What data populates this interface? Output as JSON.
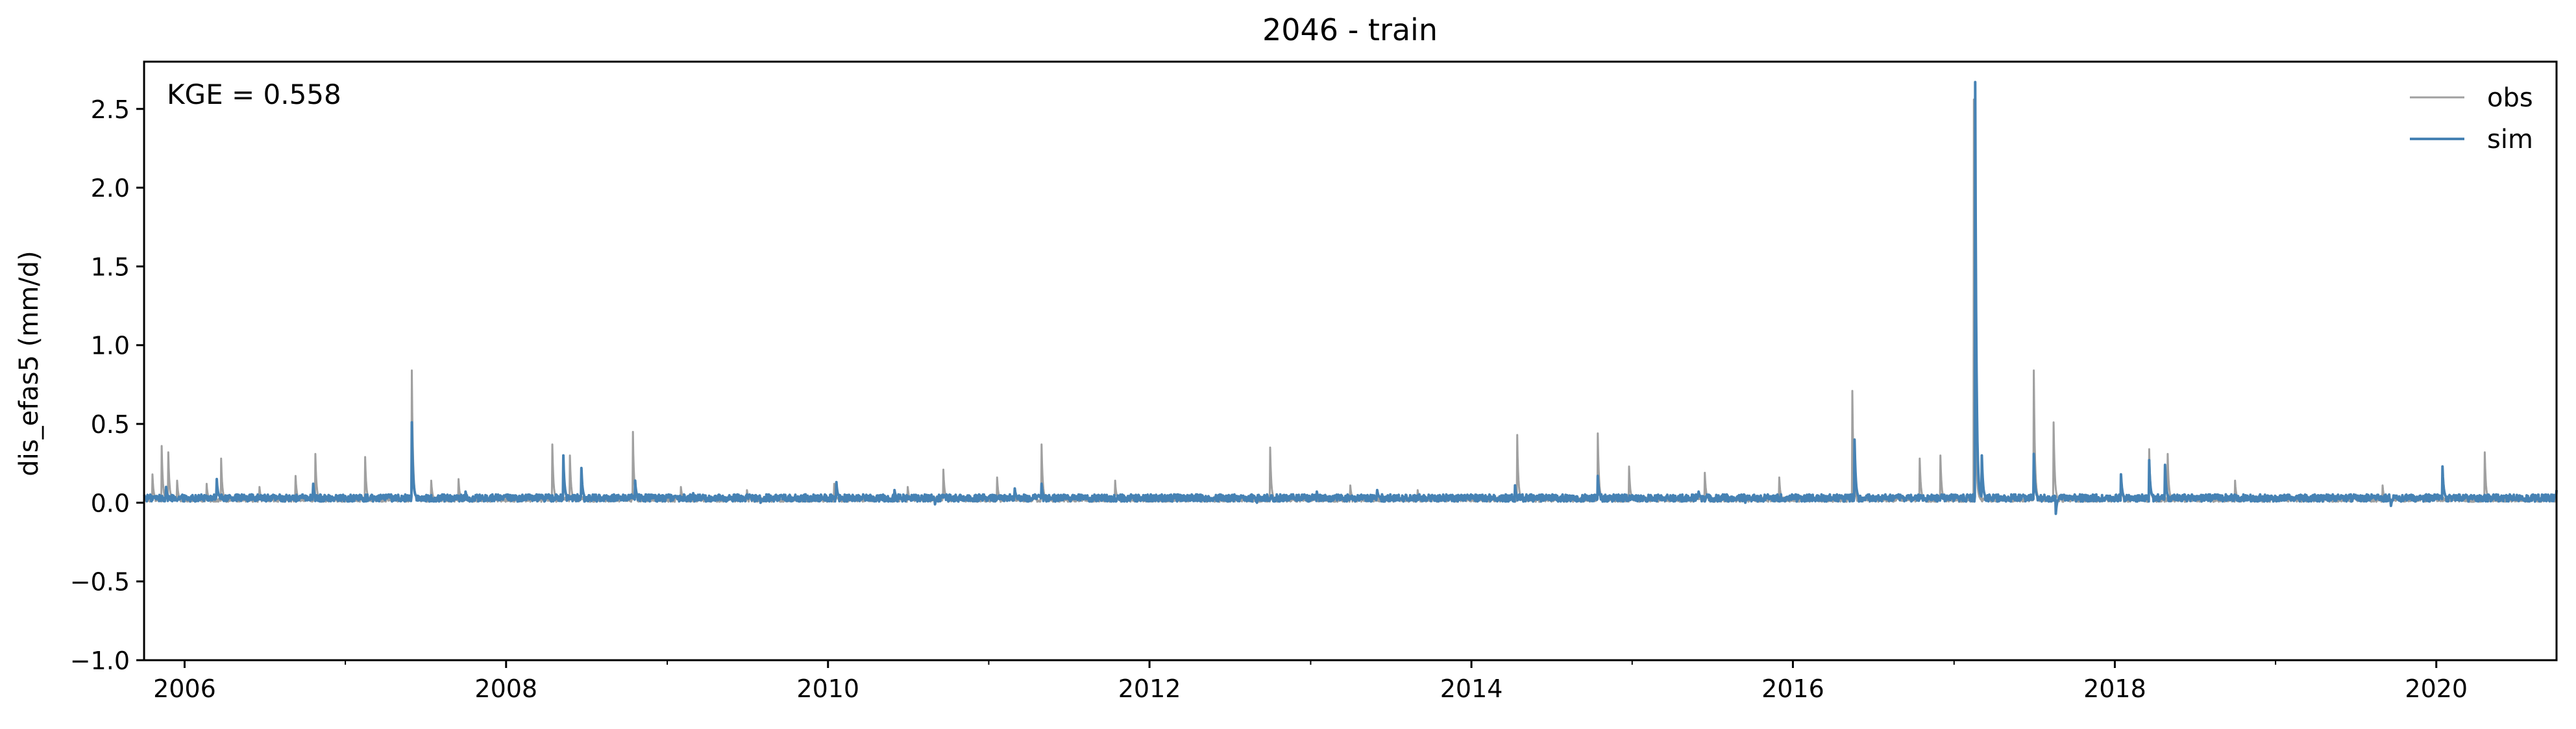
{
  "chart_data": {
    "type": "line",
    "title": "2046 - train",
    "xlabel": "",
    "ylabel": "dis_efas5 (mm/d)",
    "annotation": "KGE = 0.558",
    "xlim": [
      "2005-10-01",
      "2020-09-30"
    ],
    "ylim": [
      -1.0,
      2.8
    ],
    "x_ticks": [
      "2006",
      "2008",
      "2010",
      "2012",
      "2014",
      "2016",
      "2018",
      "2020"
    ],
    "y_ticks": [
      "−1.0",
      "−0.5",
      "0.0",
      "0.5",
      "1.0",
      "1.5",
      "2.0",
      "2.5"
    ],
    "y_tick_values": [
      -1.0,
      -0.5,
      0.0,
      0.5,
      1.0,
      1.5,
      2.0,
      2.5
    ],
    "grid": false,
    "legend_position": "top-right",
    "series": [
      {
        "name": "obs",
        "color": "#a0a0a0",
        "baseline": 0.02,
        "points": [
          [
            "2005-10-01",
            0.03
          ],
          [
            "2005-10-20",
            0.18
          ],
          [
            "2005-11-10",
            0.36
          ],
          [
            "2005-11-25",
            0.32
          ],
          [
            "2005-12-15",
            0.14
          ],
          [
            "2006-02-20",
            0.12
          ],
          [
            "2006-03-25",
            0.28
          ],
          [
            "2006-06-20",
            0.1
          ],
          [
            "2006-09-10",
            0.17
          ],
          [
            "2006-10-25",
            0.31
          ],
          [
            "2007-02-15",
            0.29
          ],
          [
            "2007-06-01",
            0.84
          ],
          [
            "2007-07-15",
            0.14
          ],
          [
            "2007-09-15",
            0.15
          ],
          [
            "2008-04-15",
            0.37
          ],
          [
            "2008-05-25",
            0.3
          ],
          [
            "2008-10-15",
            0.45
          ],
          [
            "2009-02-01",
            0.1
          ],
          [
            "2009-07-01",
            0.08
          ],
          [
            "2010-01-15",
            0.12
          ],
          [
            "2010-07-01",
            0.1
          ],
          [
            "2010-09-20",
            0.21
          ],
          [
            "2011-01-20",
            0.16
          ],
          [
            "2011-05-01",
            0.37
          ],
          [
            "2011-10-15",
            0.14
          ],
          [
            "2012-10-01",
            0.35
          ],
          [
            "2013-04-01",
            0.11
          ],
          [
            "2013-09-01",
            0.08
          ],
          [
            "2014-04-15",
            0.43
          ],
          [
            "2014-10-15",
            0.44
          ],
          [
            "2014-12-25",
            0.23
          ],
          [
            "2015-06-15",
            0.19
          ],
          [
            "2015-12-01",
            0.16
          ],
          [
            "2016-05-15",
            0.71
          ],
          [
            "2016-10-15",
            0.28
          ],
          [
            "2016-12-01",
            0.3
          ],
          [
            "2017-02-15",
            2.56
          ],
          [
            "2017-07-01",
            0.84
          ],
          [
            "2017-08-15",
            0.51
          ],
          [
            "2018-01-15",
            0.17
          ],
          [
            "2018-03-20",
            0.34
          ],
          [
            "2018-05-01",
            0.31
          ],
          [
            "2018-10-01",
            0.14
          ],
          [
            "2019-09-01",
            0.11
          ],
          [
            "2020-04-20",
            0.32
          ],
          [
            "2020-09-30",
            0.03
          ]
        ]
      },
      {
        "name": "sim",
        "color": "#4682b4",
        "baseline": 0.03,
        "points": [
          [
            "2005-10-01",
            0.05
          ],
          [
            "2005-11-20",
            0.1
          ],
          [
            "2006-03-15",
            0.15
          ],
          [
            "2006-10-20",
            0.12
          ],
          [
            "2007-06-01",
            0.51
          ],
          [
            "2007-10-01",
            0.07
          ],
          [
            "2008-05-10",
            0.3
          ],
          [
            "2008-06-20",
            0.22
          ],
          [
            "2008-10-20",
            0.14
          ],
          [
            "2009-03-01",
            0.06
          ],
          [
            "2009-08-01",
            0.0
          ],
          [
            "2010-01-20",
            0.13
          ],
          [
            "2010-06-01",
            0.08
          ],
          [
            "2010-09-01",
            -0.01
          ],
          [
            "2011-03-01",
            0.09
          ],
          [
            "2011-05-01",
            0.12
          ],
          [
            "2011-09-01",
            0.02
          ],
          [
            "2012-03-01",
            0.05
          ],
          [
            "2012-09-01",
            0.0
          ],
          [
            "2013-01-15",
            0.07
          ],
          [
            "2013-06-01",
            0.08
          ],
          [
            "2013-10-01",
            0.01
          ],
          [
            "2014-04-10",
            0.11
          ],
          [
            "2014-10-15",
            0.17
          ],
          [
            "2015-06-01",
            0.07
          ],
          [
            "2015-09-15",
            0.0
          ],
          [
            "2016-05-20",
            0.4
          ],
          [
            "2016-09-01",
            0.05
          ],
          [
            "2017-02-18",
            2.67
          ],
          [
            "2017-03-05",
            0.3
          ],
          [
            "2017-07-01",
            0.31
          ],
          [
            "2017-08-20",
            -0.07
          ],
          [
            "2018-01-15",
            0.18
          ],
          [
            "2018-03-20",
            0.27
          ],
          [
            "2018-04-25",
            0.24
          ],
          [
            "2018-10-01",
            0.05
          ],
          [
            "2019-05-01",
            0.05
          ],
          [
            "2019-09-20",
            -0.02
          ],
          [
            "2020-01-15",
            0.23
          ],
          [
            "2020-06-01",
            0.05
          ],
          [
            "2020-09-30",
            0.08
          ]
        ]
      }
    ]
  }
}
